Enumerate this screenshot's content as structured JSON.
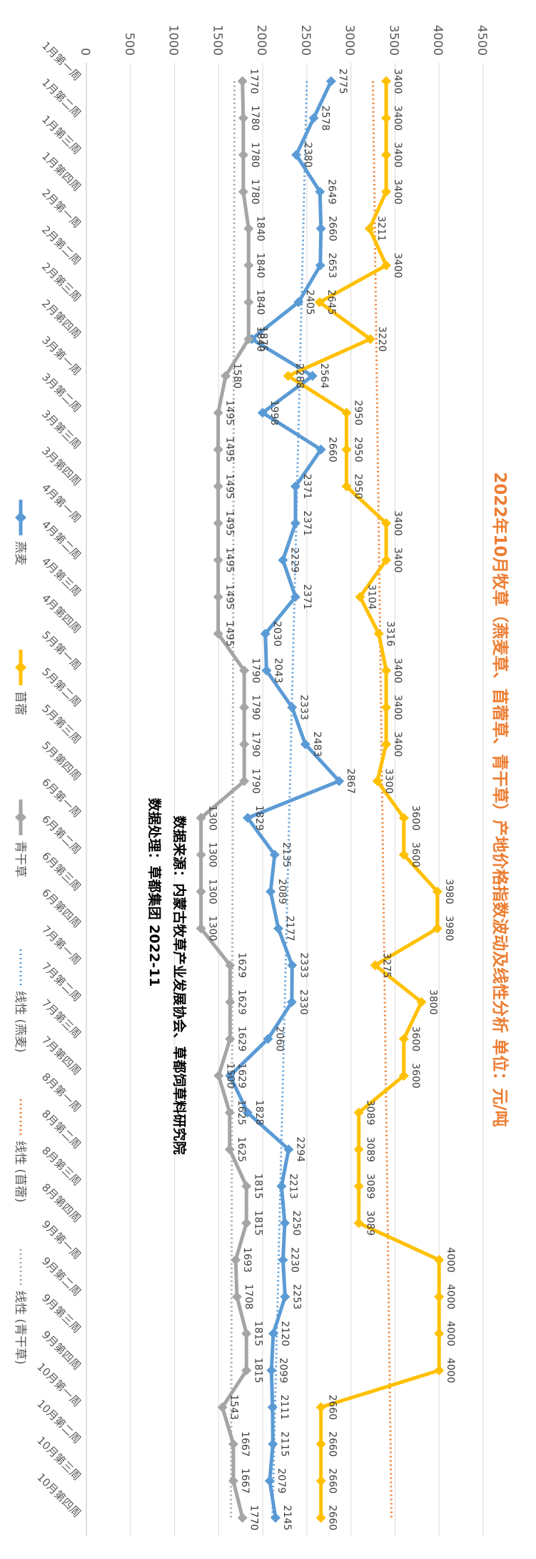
{
  "chart_data": {
    "type": "line",
    "title": "2022年10月牧草（燕麦草、苜蓿草、青干草）产地价格指数波动及线性分析 单位：元/吨",
    "source_line": "数据来源：内蒙古牧草产业发展协会、草都饲草料研究院",
    "processing_line": "数据处理：草都集团 2022-11",
    "ylim": [
      0,
      4500
    ],
    "ytick_labels": [
      "0",
      "500",
      "1000",
      "1500",
      "2000",
      "2500",
      "3000",
      "3500",
      "4000",
      "4500"
    ],
    "categories": [
      "1月第一周",
      "1月第二周",
      "1月第三周",
      "1月第四周",
      "2月第一周",
      "2月第二周",
      "2月第三周",
      "2月第四周",
      "3月第一周",
      "3月第二周",
      "3月第三周",
      "3月第四周",
      "4月第一周",
      "4月第二周",
      "4月第三周",
      "4月第四周",
      "5月第一周",
      "5月第二周",
      "5月第三周",
      "5月第四周",
      "6月第一周",
      "6月第二周",
      "6月第三周",
      "6月第四周",
      "7月第一周",
      "7月第二周",
      "7月第三周",
      "7月第四周",
      "8月第一周",
      "8月第二周",
      "8月第三周",
      "8月第四周",
      "9月第一周",
      "9月第二周",
      "9月第三周",
      "9月第四周",
      "10月第一周",
      "10月第二周",
      "10月第三周",
      "10月第四周"
    ],
    "series": [
      {
        "name": "燕麦",
        "color": "#5b9bd5",
        "marker": "diamond",
        "values": [
          2775,
          2578,
          2380,
          2649,
          2660,
          2653,
          2405,
          1875,
          2564,
          1998,
          2660,
          2371,
          2371,
          2229,
          2371,
          2030,
          2043,
          2333,
          2483,
          2867,
          1829,
          2135,
          2089,
          2177,
          2333,
          2330,
          2060,
          1629,
          1828,
          2294,
          2213,
          2250,
          2230,
          2253,
          2120,
          2099,
          2111,
          2115,
          2079,
          2145
        ]
      },
      {
        "name": "苜蓿",
        "color": "#ffc000",
        "marker": "diamond",
        "values": [
          3400,
          3400,
          3400,
          3400,
          3211,
          3400,
          2645,
          3220,
          2288,
          2950,
          2950,
          2950,
          3400,
          3400,
          3104,
          3316,
          3400,
          3400,
          3400,
          3300,
          3600,
          3600,
          3980,
          3980,
          3275,
          3800,
          3600,
          3600,
          3089,
          3089,
          3089,
          3089,
          4000,
          4000,
          4000,
          4000,
          2660,
          2660,
          2660,
          2660
        ]
      },
      {
        "name": "青干草",
        "color": "#a5a5a5",
        "marker": "diamond",
        "values": [
          1770,
          1780,
          1780,
          1780,
          1840,
          1840,
          1840,
          1840,
          1580,
          1495,
          1495,
          1495,
          1495,
          1495,
          1495,
          1495,
          1790,
          1790,
          1790,
          1790,
          1300,
          1300,
          1300,
          1300,
          1629,
          1629,
          1629,
          1500,
          1625,
          1625,
          1815,
          1815,
          1693,
          1708,
          1815,
          1815,
          1543,
          1667,
          1667,
          1770
        ]
      }
    ],
    "trendlines": [
      {
        "name": "线性 (燕麦)",
        "color": "#5b9bd5",
        "style": "dotted",
        "from": 2500,
        "to": 2110
      },
      {
        "name": "线性 (苜蓿)",
        "color": "#ed7d31",
        "style": "dotted",
        "from": 3250,
        "to": 3460
      },
      {
        "name": "线性 (青干草)",
        "color": "#a5a5a5",
        "style": "dotted",
        "from": 1680,
        "to": 1640
      }
    ],
    "legend_position": "bottom (rotated chart)",
    "grid": true
  }
}
